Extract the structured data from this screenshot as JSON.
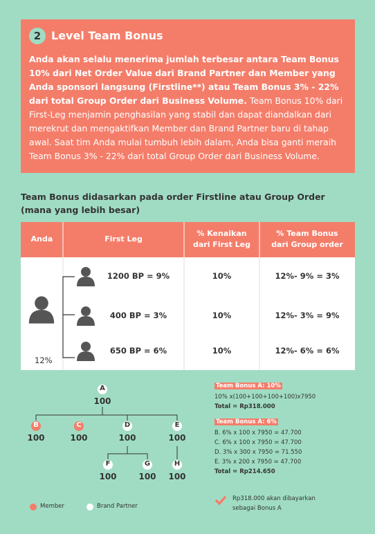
{
  "section": {
    "number": "2",
    "title": "Level Team Bonus",
    "bold_text": "Anda akan selalu menerima jumlah terbesar antara Team Bonus 10% dari Net Order Value dari Brand Partner dan Member yang Anda sponsori langsung (Firstline**)  atau  Team Bonus  3% - 22% dari total Group Order dari Business Volume.",
    "text": "Team Bonus 10% dari First-Leg menjamin penghasilan yang stabil dan dapat diandalkan dari merekrut dan mengaktifkan Member dan Brand Partner baru di tahap awal. Saat tim Anda mulai tumbuh lebih dalam, Anda bisa ganti meraih Team Bonus 3% - 22% dari total Group Order dari Business Volume."
  },
  "table": {
    "caption": [
      "Team Bonus didasarkan pada order Firstline atau Group Order",
      "(mana yang lebih besar)"
    ],
    "headers": [
      [
        "Anda"
      ],
      [
        "First Leg"
      ],
      [
        "% Kenaikan",
        "dari First Leg"
      ],
      [
        "% Team Bonus",
        "dari Group order"
      ]
    ],
    "anda": "12%",
    "rows": [
      [
        "1200 BP = 9%",
        "10%",
        "12%- 9% = 3%"
      ],
      [
        "400 BP = 3%",
        "10%",
        "12%- 3% = 9%"
      ],
      [
        "650 BP = 6%",
        "10%",
        "12%- 6% = 6%"
      ]
    ]
  },
  "tree": {
    "nodes": [
      {
        "label": "A",
        "value": "100"
      },
      {
        "label": "B",
        "value": "100"
      },
      {
        "label": "C",
        "value": "100"
      },
      {
        "label": "D",
        "value": "100"
      },
      {
        "label": "E",
        "value": "100"
      },
      {
        "label": "F",
        "value": "100"
      },
      {
        "label": "G",
        "value": "100"
      },
      {
        "label": "H",
        "value": "100"
      }
    ]
  },
  "calc": [
    {
      "heading": "Team Bonus A: 10%",
      "lines": [
        "10% x(100+100+100+100)x7950"
      ],
      "total": "Total = Rp318.000"
    },
    {
      "heading": "Team Bonus A: 6%",
      "lines": [
        "B. 6% x 100 x 7950 = 47.700",
        "C. 6% x 100 x 7950 = 47.700",
        "D. 3% x 300 x 7950 = 71.550",
        "E. 3% x 200 x 7950 = 47.700"
      ],
      "total": "Total = Rp214.650"
    }
  ],
  "legend": [
    "Member",
    "Brand Partner"
  ],
  "note": [
    "Rp318.000 akan dibayarkan",
    "sebagai Bonus A"
  ]
}
